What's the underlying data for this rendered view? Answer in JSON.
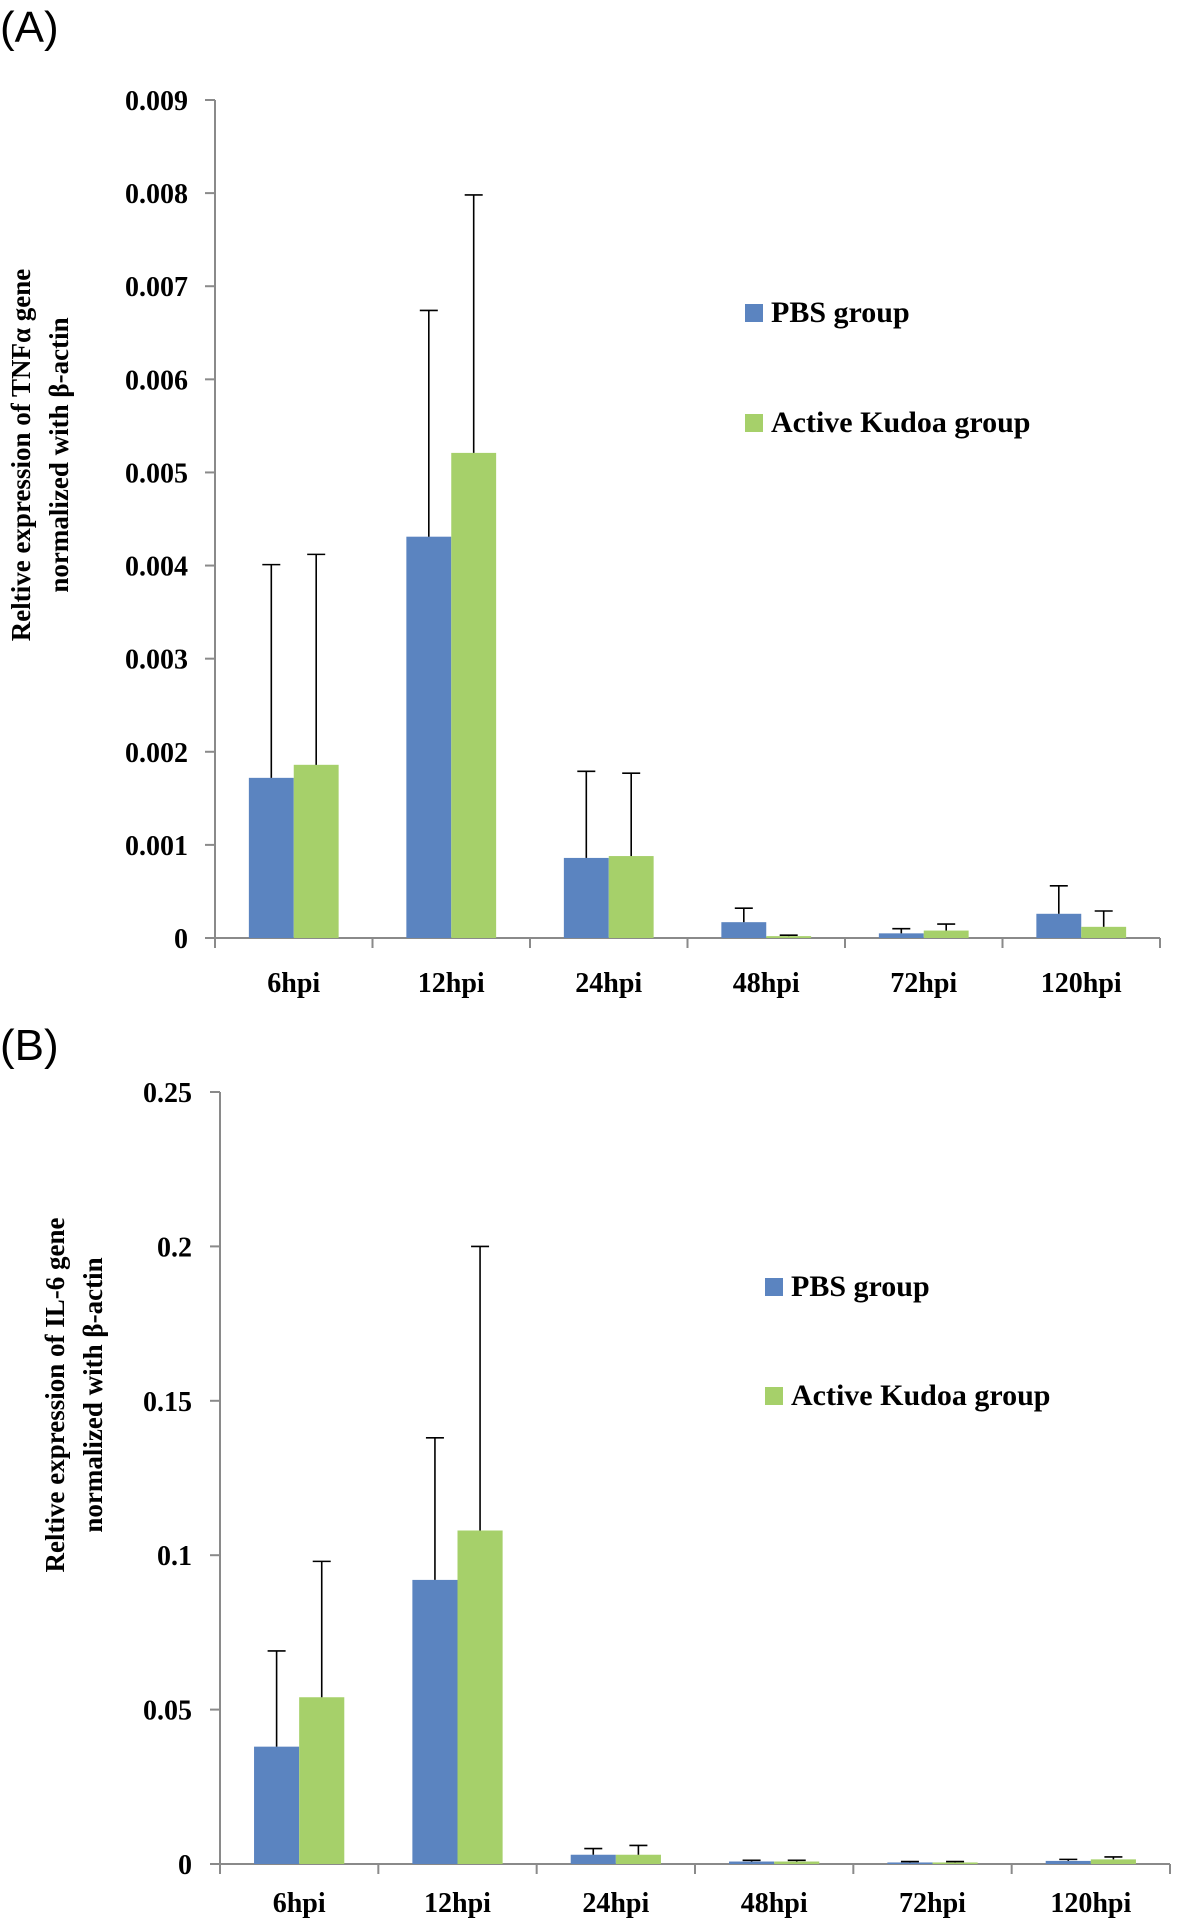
{
  "chart_data": [
    {
      "panel_label": "(A)",
      "type": "bar",
      "categories": [
        "6hpi",
        "12hpi",
        "24hpi",
        "48hpi",
        "72hpi",
        "120hpi"
      ],
      "series": [
        {
          "name": "PBS group",
          "color": "#5b84c0",
          "values": [
            0.00172,
            0.00431,
            0.00086,
            0.00017,
            5e-05,
            0.00026
          ],
          "errors": [
            0.00229,
            0.00243,
            0.00093,
            0.00015,
            5e-05,
            0.0003
          ]
        },
        {
          "name": "Active Kudoa group",
          "color": "#a6d06a",
          "values": [
            0.00186,
            0.00521,
            0.00088,
            2e-05,
            8e-05,
            0.00012
          ],
          "errors": [
            0.00226,
            0.00277,
            0.00089,
            1e-05,
            7e-05,
            0.00017
          ]
        }
      ],
      "ylabel_lines": [
        "Reltive expression of TNFα gene",
        "normalized with β-actin"
      ],
      "xlabel": "",
      "ylim": [
        0,
        0.009
      ],
      "yticks": [
        0,
        0.001,
        0.002,
        0.003,
        0.004,
        0.005,
        0.006,
        0.007,
        0.008,
        0.009
      ],
      "ytick_labels": [
        "0",
        "0.001",
        "0.002",
        "0.003",
        "0.004",
        "0.005",
        "0.006",
        "0.007",
        "0.008",
        "0.009"
      ],
      "grid": false,
      "legend_position": "top-right"
    },
    {
      "panel_label": "(B)",
      "type": "bar",
      "categories": [
        "6hpi",
        "12hpi",
        "24hpi",
        "48hpi",
        "72hpi",
        "120hpi"
      ],
      "series": [
        {
          "name": "PBS group",
          "color": "#5b84c0",
          "values": [
            0.038,
            0.092,
            0.003,
            0.0008,
            0.0005,
            0.001
          ],
          "errors": [
            0.031,
            0.046,
            0.002,
            0.0004,
            0.0003,
            0.0005
          ]
        },
        {
          "name": "Active Kudoa group",
          "color": "#a6d06a",
          "values": [
            0.054,
            0.108,
            0.003,
            0.0008,
            0.0005,
            0.0015
          ],
          "errors": [
            0.044,
            0.092,
            0.003,
            0.0004,
            0.0003,
            0.0008
          ]
        }
      ],
      "ylabel_lines": [
        "Reltive expression of IL-6 gene",
        "normalized with β-actin"
      ],
      "xlabel": "",
      "ylim": [
        0,
        0.25
      ],
      "yticks": [
        0,
        0.05,
        0.1,
        0.15,
        0.2,
        0.25
      ],
      "ytick_labels": [
        "0",
        "0.05",
        "0.1",
        "0.15",
        "0.2",
        "0.25"
      ],
      "grid": false,
      "legend_position": "top-right"
    }
  ]
}
